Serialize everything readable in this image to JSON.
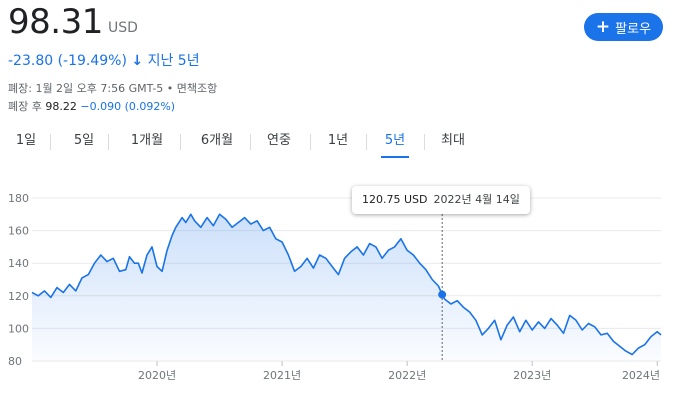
{
  "quote": {
    "price": "98.31",
    "currency": "USD",
    "change_text": "-23.80 (-19.49%)",
    "change_arrow": "↓",
    "change_period": "지난 5년",
    "close_meta": "폐장: 1월 2일 오후 7:56 GMT-5 • 면책조항",
    "after_label": "폐장 후",
    "after_value": "98.22",
    "after_change": "−0.090 (0.092%)"
  },
  "follow_button": {
    "icon": "plus-icon",
    "label": "팔로우",
    "color": "#1a73e8"
  },
  "tabs": [
    {
      "label": "1일",
      "active": false
    },
    {
      "label": "5일",
      "active": false
    },
    {
      "label": "1개월",
      "active": false
    },
    {
      "label": "6개월",
      "active": false
    },
    {
      "label": "연중",
      "active": false
    },
    {
      "label": "1년",
      "active": false
    },
    {
      "label": "5년",
      "active": true
    },
    {
      "label": "최대",
      "active": false
    }
  ],
  "tooltip": {
    "value": "120.75 USD",
    "date": "2022년 4월 14일"
  },
  "chart_data": {
    "type": "area",
    "title": "",
    "xlabel": "",
    "ylabel": "",
    "ylim": [
      80,
      180
    ],
    "xlim": [
      2019.0,
      2024.03
    ],
    "yticks": [
      "80",
      "100",
      "120",
      "140",
      "160",
      "180"
    ],
    "xticks": [
      {
        "label": "2020년",
        "x": 2020.0
      },
      {
        "label": "2021년",
        "x": 2021.0
      },
      {
        "label": "2022년",
        "x": 2022.0
      },
      {
        "label": "2023년",
        "x": 2023.0
      },
      {
        "label": "2024년",
        "x": 2024.0
      }
    ],
    "line_color": "#1a73e8",
    "grid": true,
    "highlight": {
      "x": 2022.28,
      "y": 120.75
    },
    "series": [
      {
        "x": [
          2019.0,
          2019.05,
          2019.1,
          2019.15,
          2019.2,
          2019.25,
          2019.3,
          2019.35,
          2019.4,
          2019.45,
          2019.5,
          2019.55,
          2019.6,
          2019.65,
          2019.7,
          2019.75,
          2019.78,
          2019.82,
          2019.85,
          2019.88,
          2019.92,
          2019.96,
          2020.0,
          2020.04,
          2020.08,
          2020.12,
          2020.15,
          2020.2,
          2020.23,
          2020.27,
          2020.3,
          2020.35,
          2020.4,
          2020.45,
          2020.5,
          2020.55,
          2020.6,
          2020.65,
          2020.7,
          2020.75,
          2020.8,
          2020.85,
          2020.9,
          2020.95,
          2021.0,
          2021.05,
          2021.1,
          2021.15,
          2021.2,
          2021.25,
          2021.3,
          2021.35,
          2021.4,
          2021.45,
          2021.5,
          2021.55,
          2021.6,
          2021.65,
          2021.7,
          2021.75,
          2021.8,
          2021.85,
          2021.9,
          2021.95,
          2022.0,
          2022.05,
          2022.1,
          2022.15,
          2022.2,
          2022.25,
          2022.28,
          2022.3,
          2022.35,
          2022.4,
          2022.45,
          2022.5,
          2022.55,
          2022.6,
          2022.65,
          2022.7,
          2022.75,
          2022.8,
          2022.85,
          2022.9,
          2022.95,
          2023.0,
          2023.05,
          2023.1,
          2023.15,
          2023.2,
          2023.25,
          2023.3,
          2023.35,
          2023.4,
          2023.45,
          2023.5,
          2023.55,
          2023.6,
          2023.65,
          2023.7,
          2023.75,
          2023.8,
          2023.85,
          2023.9,
          2023.95,
          2024.0,
          2024.03
        ],
        "values": [
          122,
          120,
          123,
          119,
          125,
          122,
          127,
          123,
          131,
          133,
          140,
          145,
          141,
          143,
          135,
          136,
          144,
          140,
          140,
          134,
          145,
          150,
          138,
          135,
          148,
          157,
          162,
          168,
          165,
          170,
          166,
          162,
          168,
          163,
          170,
          167,
          162,
          165,
          168,
          164,
          166,
          160,
          162,
          155,
          153,
          145,
          135,
          138,
          143,
          137,
          145,
          143,
          138,
          133,
          143,
          147,
          150,
          145,
          152,
          150,
          143,
          148,
          150,
          155,
          148,
          145,
          140,
          136,
          130,
          126,
          120.75,
          118,
          115,
          117,
          113,
          110,
          105,
          96,
          100,
          105,
          93,
          102,
          107,
          98,
          105,
          99,
          104,
          100,
          106,
          102,
          97,
          108,
          105,
          99,
          103,
          101,
          96,
          97,
          92,
          89,
          86,
          84,
          88,
          90,
          95,
          98,
          96
        ]
      }
    ]
  }
}
